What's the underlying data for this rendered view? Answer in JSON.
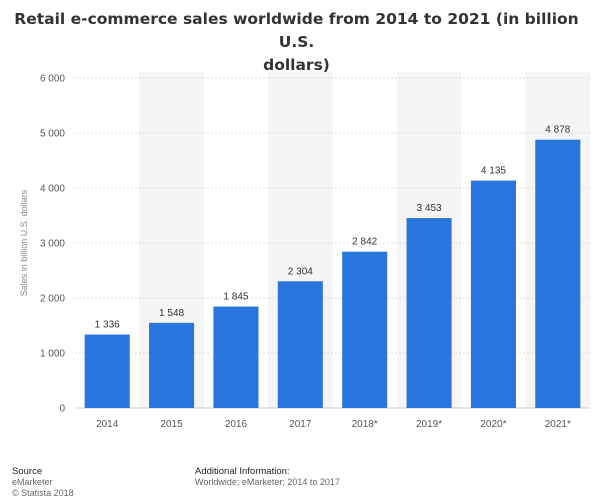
{
  "chart_data": {
    "type": "bar",
    "title_lines": [
      "Retail e-commerce sales worldwide from 2014 to 2021 (in billion U.S.",
      "dollars)"
    ],
    "xlabel": "",
    "ylabel": "Sales in billion U.S. dollars",
    "ylim": [
      0,
      6000
    ],
    "yticks": [
      0,
      1000,
      2000,
      3000,
      4000,
      5000,
      6000
    ],
    "ytick_labels": [
      "0",
      "1 000",
      "2 000",
      "3 000",
      "4 000",
      "5 000",
      "6 000"
    ],
    "categories": [
      "2014",
      "2015",
      "2016",
      "2017",
      "2018*",
      "2019*",
      "2020*",
      "2021*"
    ],
    "values": [
      1336,
      1548,
      1845,
      2304,
      2842,
      3453,
      4135,
      4878
    ],
    "value_labels": [
      "1 336",
      "1 548",
      "1 845",
      "2 304",
      "2 842",
      "3 453",
      "4 135",
      "4 878"
    ],
    "bar_color": "#2876dd",
    "band_color": "#f5f5f5",
    "grid": true
  },
  "footer": {
    "source_heading": "Source",
    "source_lines": [
      "eMarketer",
      "© Statista 2018"
    ],
    "info_heading": "Additional Information:",
    "info_lines": [
      "Worldwide; eMarketer; 2014 to 2017"
    ]
  }
}
